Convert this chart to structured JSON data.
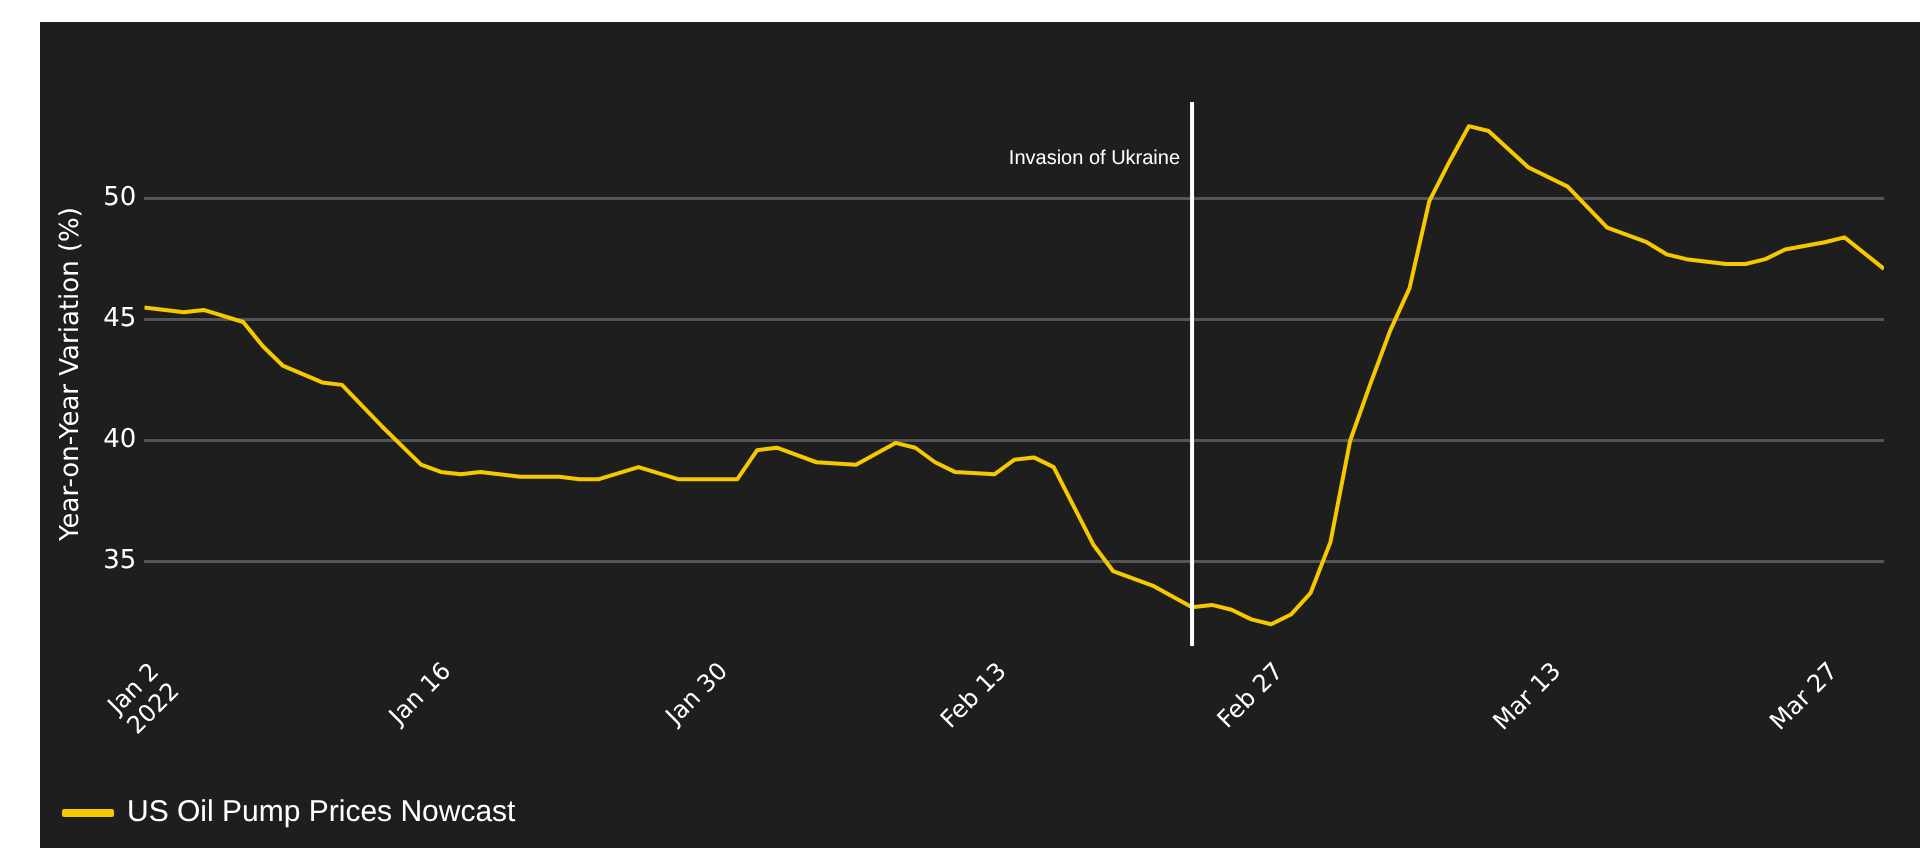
{
  "chart_data": {
    "type": "line",
    "ylabel": "Year-on-Year Variation (%)",
    "x": [
      "2022-01-02",
      "2022-01-04",
      "2022-01-05",
      "2022-01-07",
      "2022-01-08",
      "2022-01-09",
      "2022-01-11",
      "2022-01-12",
      "2022-01-14",
      "2022-01-16",
      "2022-01-17",
      "2022-01-18",
      "2022-01-19",
      "2022-01-21",
      "2022-01-23",
      "2022-01-24",
      "2022-01-25",
      "2022-01-27",
      "2022-01-29",
      "2022-02-01",
      "2022-02-02",
      "2022-02-03",
      "2022-02-05",
      "2022-02-07",
      "2022-02-09",
      "2022-02-10",
      "2022-02-11",
      "2022-02-12",
      "2022-02-14",
      "2022-02-15",
      "2022-02-16",
      "2022-02-17",
      "2022-02-19",
      "2022-02-20",
      "2022-02-22",
      "2022-02-24",
      "2022-02-25",
      "2022-02-26",
      "2022-02-27",
      "2022-02-28",
      "2022-03-01",
      "2022-03-02",
      "2022-03-03",
      "2022-03-04",
      "2022-03-05",
      "2022-03-06",
      "2022-03-07",
      "2022-03-08",
      "2022-03-09",
      "2022-03-10",
      "2022-03-11",
      "2022-03-13",
      "2022-03-15",
      "2022-03-17",
      "2022-03-19",
      "2022-03-20",
      "2022-03-21",
      "2022-03-23",
      "2022-03-24",
      "2022-03-25",
      "2022-03-26",
      "2022-03-28",
      "2022-03-29",
      "2022-03-31"
    ],
    "series": [
      {
        "name": "US Oil Pump Prices Nowcast",
        "color": "#f5c800",
        "values": [
          45.5,
          45.3,
          45.4,
          44.9,
          43.9,
          43.1,
          42.4,
          42.3,
          40.6,
          39.0,
          38.7,
          38.6,
          38.7,
          38.5,
          38.5,
          38.4,
          38.4,
          38.9,
          38.4,
          38.4,
          39.6,
          39.7,
          39.1,
          39.0,
          39.9,
          39.7,
          39.1,
          38.7,
          38.6,
          39.2,
          39.3,
          38.9,
          35.7,
          34.6,
          34.0,
          33.1,
          33.2,
          33.0,
          32.6,
          32.4,
          32.8,
          33.7,
          35.8,
          40.0,
          42.3,
          44.5,
          46.3,
          49.9,
          51.5,
          53.0,
          52.8,
          51.3,
          50.5,
          48.8,
          48.2,
          47.7,
          47.5,
          47.3,
          47.3,
          47.5,
          47.9,
          48.2,
          48.4,
          47.1
        ]
      }
    ],
    "xlim": [
      "2022-01-02",
      "2022-03-31"
    ],
    "xticks": [
      {
        "value": "2022-01-02",
        "label": "Jan 2\n2022"
      },
      {
        "value": "2022-01-16",
        "label": "Jan 16"
      },
      {
        "value": "2022-01-30",
        "label": "Jan 30"
      },
      {
        "value": "2022-02-13",
        "label": "Feb 13"
      },
      {
        "value": "2022-02-27",
        "label": "Feb 27"
      },
      {
        "value": "2022-03-13",
        "label": "Mar 13"
      },
      {
        "value": "2022-03-27",
        "label": "Mar 27"
      }
    ],
    "ylim": [
      31.5,
      54
    ],
    "yticks": [
      35,
      40,
      45,
      50
    ],
    "ref_lines": [
      {
        "axis": "x",
        "value": "2022-02-24",
        "label": "Invasion of Ukraine",
        "color": "#ffffff"
      }
    ],
    "grid": "y",
    "legend": "bottom left",
    "marker": "none",
    "line_style": "solid"
  }
}
